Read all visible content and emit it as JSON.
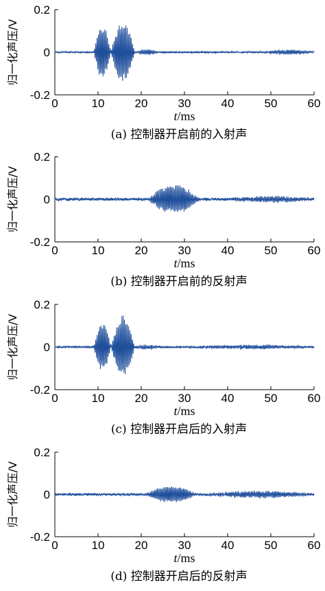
{
  "chart_data": [
    {
      "type": "line",
      "panel": "a",
      "caption": "(a) 控制器开启前的入射声",
      "xlabel_italic": "t",
      "xlabel_unit": "/ms",
      "ylabel": "归一化声压/V",
      "xlim": [
        0,
        60
      ],
      "ylim": [
        -0.2,
        0.2
      ],
      "xticks": [
        "0",
        "10",
        "20",
        "30",
        "40",
        "50",
        "60"
      ],
      "yticks": [
        "0.2",
        "0",
        "-0.2"
      ],
      "series": [
        {
          "color": "#1f4e9b",
          "noise_amplitude": 0.003,
          "bursts": [
            {
              "x_start": 9,
              "x_end": 13,
              "peak": 0.13
            },
            {
              "x_start": 13,
              "x_end": 18.5,
              "peak": 0.155
            },
            {
              "x_start": 18.5,
              "x_end": 24,
              "peak": 0.012
            },
            {
              "x_start": 48,
              "x_end": 60,
              "peak": 0.01
            }
          ]
        }
      ]
    },
    {
      "type": "line",
      "panel": "b",
      "caption": "(b) 控制器开启前的反射声",
      "xlabel_italic": "t",
      "xlabel_unit": "/ms",
      "ylabel": "归一化声压/V",
      "xlim": [
        0,
        60
      ],
      "ylim": [
        -0.2,
        0.2
      ],
      "xticks": [
        "0",
        "10",
        "20",
        "30",
        "40",
        "50",
        "60"
      ],
      "yticks": [
        "0.2",
        "0",
        "-0.2"
      ],
      "series": [
        {
          "color": "#1f4e9b",
          "noise_amplitude": 0.006,
          "bursts": [
            {
              "x_start": 21.5,
              "x_end": 33.5,
              "peak": 0.07
            },
            {
              "x_start": 40,
              "x_end": 60,
              "peak": 0.012
            }
          ]
        }
      ]
    },
    {
      "type": "line",
      "panel": "c",
      "caption": "(c) 控制器开启后的入射声",
      "xlabel_italic": "t",
      "xlabel_unit": "/ms",
      "ylabel": "归一化声压/V",
      "xlim": [
        0,
        60
      ],
      "ylim": [
        -0.2,
        0.2
      ],
      "xticks": [
        "0",
        "10",
        "20",
        "30",
        "40",
        "50",
        "60"
      ],
      "yticks": [
        "0.2",
        "0",
        "-0.2"
      ],
      "series": [
        {
          "color": "#1f4e9b",
          "noise_amplitude": 0.004,
          "bursts": [
            {
              "x_start": 9,
              "x_end": 13,
              "peak": 0.12
            },
            {
              "x_start": 13,
              "x_end": 18.5,
              "peak": 0.15
            },
            {
              "x_start": 18.5,
              "x_end": 24,
              "peak": 0.01
            },
            {
              "x_start": 30,
              "x_end": 60,
              "peak": 0.008
            }
          ]
        }
      ]
    },
    {
      "type": "line",
      "panel": "d",
      "caption": "(d) 控制器开启后的反射声",
      "xlabel_italic": "t",
      "xlabel_unit": "/ms",
      "ylabel": "归一化声压/V",
      "xlim": [
        0,
        60
      ],
      "ylim": [
        -0.2,
        0.2
      ],
      "xticks": [
        "0",
        "10",
        "20",
        "30",
        "40",
        "50",
        "60"
      ],
      "yticks": [
        "0.2",
        "0",
        "-0.2"
      ],
      "series": [
        {
          "color": "#1f4e9b",
          "noise_amplitude": 0.005,
          "bursts": [
            {
              "x_start": 21,
              "x_end": 33,
              "peak": 0.04
            },
            {
              "x_start": 35,
              "x_end": 60,
              "peak": 0.015
            }
          ]
        }
      ]
    }
  ]
}
